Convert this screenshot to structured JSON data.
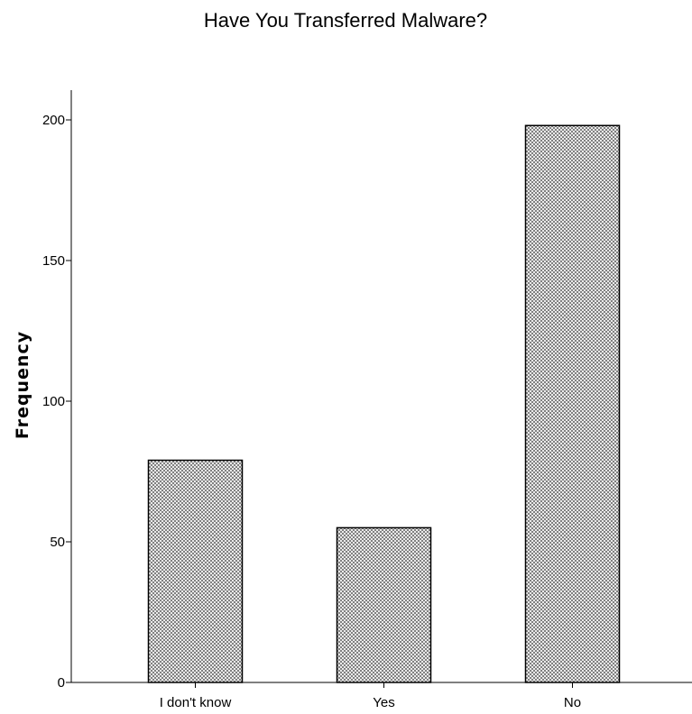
{
  "chart_data": {
    "type": "bar",
    "title": "Have You Transferred Malware?",
    "xlabel": "",
    "ylabel": "Frequency",
    "categories": [
      "I don't know",
      "Yes",
      "No"
    ],
    "values": [
      79,
      55,
      198
    ],
    "ylim": [
      0,
      210
    ],
    "yticks": [
      0,
      50,
      100,
      150,
      200
    ],
    "grid": false,
    "legend": "none",
    "bar_fill_pattern": "crosshatch",
    "colors": {
      "bar_fill": "#d8d8d8",
      "bar_stroke": "#000000",
      "axis": "#000000",
      "background": "#ffffff"
    }
  }
}
